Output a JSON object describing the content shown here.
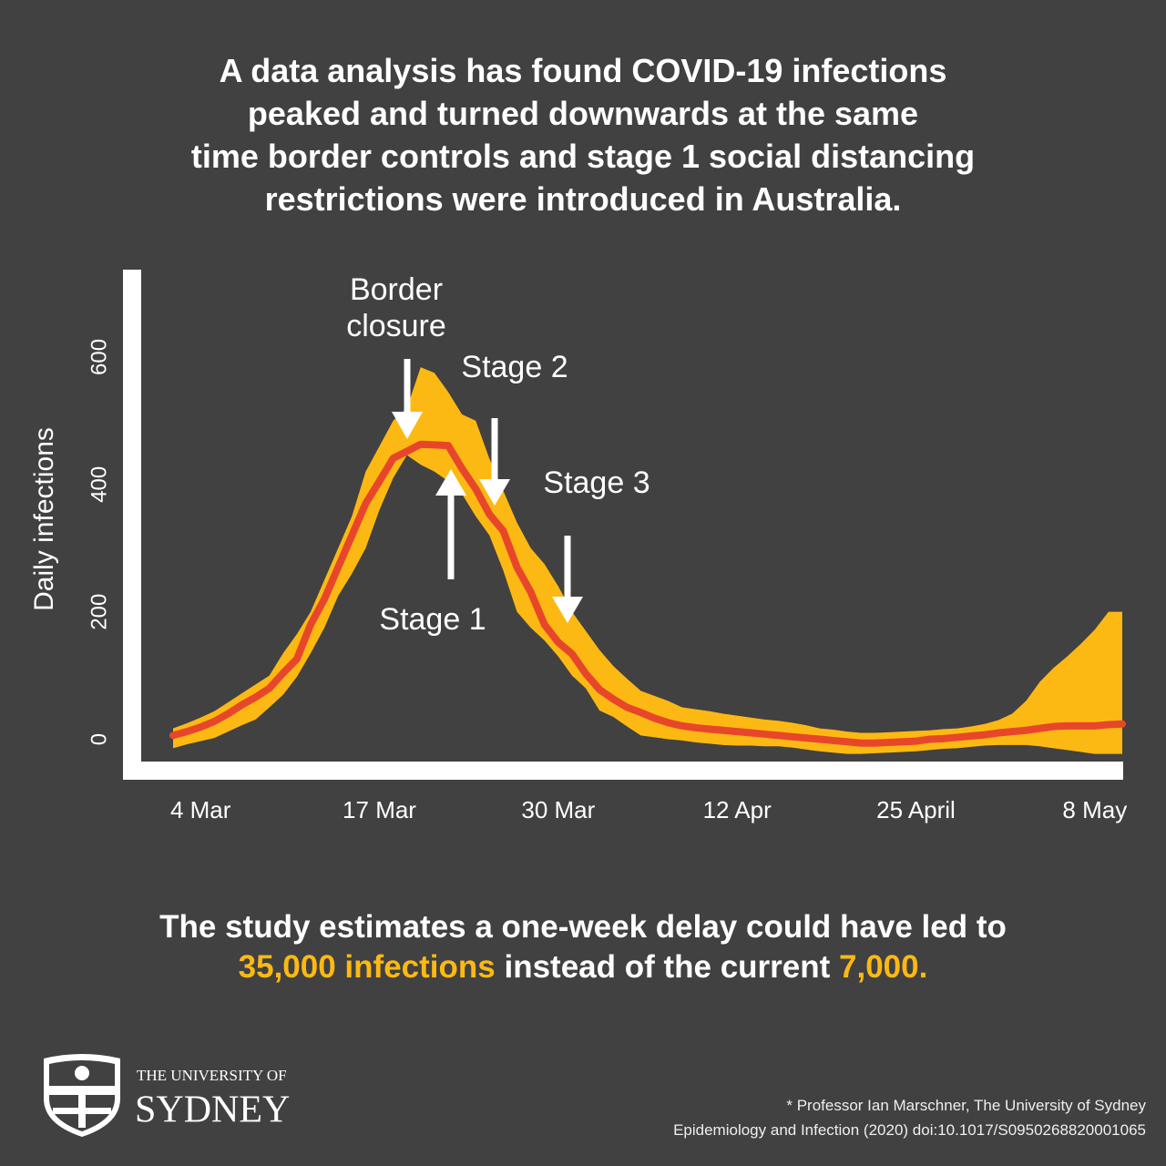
{
  "header": {
    "title": [
      "A data analysis has found COVID-19 infections",
      "peaked and turned downwards at the same",
      "time border controls and stage 1 social distancing",
      "restrictions were introduced in Australia."
    ]
  },
  "chart_data": {
    "type": "line",
    "y_label": "Daily infections",
    "categories": [
      null,
      null,
      "4 Mar",
      null,
      null,
      null,
      null,
      null,
      null,
      null,
      null,
      null,
      null,
      null,
      null,
      "17 Mar",
      null,
      null,
      null,
      null,
      null,
      null,
      null,
      null,
      null,
      null,
      null,
      null,
      "30 Mar",
      null,
      null,
      null,
      null,
      null,
      null,
      null,
      null,
      null,
      null,
      null,
      null,
      "12 Apr",
      null,
      null,
      null,
      null,
      null,
      null,
      null,
      null,
      null,
      null,
      null,
      null,
      "25 April",
      null,
      null,
      null,
      null,
      null,
      null,
      null,
      null,
      null,
      null,
      null,
      null,
      "8 May",
      null,
      null
    ],
    "series": [
      {
        "color": "#e8462a",
        "values": [
          6,
          12,
          19,
          28,
          40,
          54,
          66,
          80,
          104,
          126,
          180,
          220,
          270,
          320,
          370,
          405,
          441,
          452,
          463,
          462,
          461,
          425,
          393,
          353,
          327,
          270,
          231,
          180,
          152,
          134,
          103,
          78,
          63,
          50,
          42,
          33,
          26,
          21,
          18,
          16,
          14,
          12,
          10,
          8,
          6,
          4,
          2,
          0,
          -2,
          -4,
          -6,
          -6,
          -5,
          -4,
          -3,
          0,
          1,
          3,
          5,
          7,
          10,
          12,
          14,
          17,
          20,
          21,
          21,
          21,
          23,
          24
        ]
      }
    ],
    "band": {
      "color": "#fdb913",
      "upper": [
        17,
        25,
        34,
        44,
        58,
        72,
        86,
        100,
        135,
        165,
        200,
        250,
        300,
        350,
        420,
        460,
        500,
        520,
        584,
        575,
        545,
        510,
        500,
        440,
        390,
        340,
        300,
        275,
        240,
        200,
        170,
        140,
        115,
        95,
        76,
        68,
        60,
        50,
        47,
        44,
        40,
        37,
        34,
        31,
        29,
        26,
        22,
        17,
        15,
        12,
        10,
        10,
        11,
        12,
        13,
        14,
        16,
        17,
        20,
        24,
        30,
        40,
        60,
        90,
        112,
        130,
        150,
        172,
        200,
        200
      ],
      "lower": [
        -14,
        -8,
        -3,
        2,
        12,
        22,
        31,
        50,
        70,
        98,
        135,
        175,
        225,
        260,
        300,
        360,
        410,
        446,
        431,
        420,
        405,
        385,
        350,
        320,
        265,
        200,
        175,
        155,
        130,
        100,
        80,
        45,
        35,
        20,
        6,
        3,
        0,
        -2,
        -5,
        -7,
        -9,
        -10,
        -10,
        -11,
        -11,
        -13,
        -16,
        -19,
        -21,
        -23,
        -23,
        -22,
        -21,
        -20,
        -19,
        -17,
        -15,
        -14,
        -12,
        -10,
        -9,
        -9,
        -9,
        -11,
        -14,
        -17,
        -20,
        -23,
        -23,
        -23
      ]
    },
    "ylim": [
      -35,
      740
    ],
    "yticks": [
      0,
      200,
      400,
      600
    ],
    "grid": false,
    "annotations": [
      [
        "Border",
        "closure"
      ],
      [
        "Stage 2"
      ],
      [
        "Stage 3"
      ],
      [
        "Stage 1"
      ]
    ]
  },
  "footer": {
    "text": "The study estimates a one-week delay could have led to",
    "highlight_1": "35,000 infections",
    "text_2": "instead of the current",
    "highlight_2": "7,000."
  },
  "logo": {
    "line_1": "THE UNIVERSITY OF",
    "line_2": "SYDNEY"
  },
  "credit": [
    "* Professor Ian Marschner, The University of Sydney",
    "Epidemiology and Infection (2020) doi:10.1017/S0950268820001065"
  ]
}
